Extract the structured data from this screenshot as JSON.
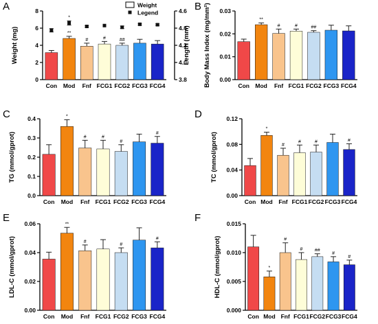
{
  "figure": {
    "categories": [
      "Con",
      "Mod",
      "Fnf",
      "FCG1",
      "FCG2",
      "FCG3",
      "FCG4"
    ],
    "colors": [
      "#F04848",
      "#F2850F",
      "#F9C48D",
      "#FEFDD8",
      "#C5DDF2",
      "#2E96F0",
      "#1A24C8"
    ]
  },
  "chart_data": [
    {
      "panel": "A",
      "type": "bar",
      "ylabel": "Weight (mg)",
      "ylim": [
        0,
        8
      ],
      "yticks": [
        "0",
        "2",
        "4",
        "6",
        "8"
      ],
      "categories": [
        "Con",
        "Mod",
        "Fnf",
        "FCG1",
        "FCG2",
        "FCG3",
        "FCG4"
      ],
      "values": [
        3.15,
        4.8,
        3.9,
        4.15,
        4.0,
        4.25,
        4.15
      ],
      "errors": [
        0.25,
        0.25,
        0.35,
        0.3,
        0.25,
        0.45,
        0.4
      ],
      "markers": [
        "",
        "**",
        "#",
        "#",
        "##",
        "",
        ""
      ],
      "legend": [
        "Weight",
        "Legend"
      ],
      "secondary": {
        "type": "scatter",
        "ylabel": "Length (mm)",
        "ylim": [
          3.8,
          4.6
        ],
        "yticks": [
          "3.8",
          "4.0",
          "4.2",
          "4.4",
          "4.6"
        ],
        "values": [
          4.375,
          4.46,
          4.42,
          4.43,
          4.41,
          4.445,
          4.44
        ],
        "errors": [
          0.02,
          0.025,
          0.01,
          0.0,
          0.015,
          0.01,
          0.01
        ],
        "markers": [
          "",
          "*",
          "",
          "",
          "",
          "",
          ""
        ]
      }
    },
    {
      "panel": "B",
      "type": "bar",
      "ylabel": "Body Mass Index (mg/mm²)",
      "ylim": [
        0,
        0.03
      ],
      "yticks": [
        "0.00",
        "0.01",
        "0.02",
        "0.03"
      ],
      "categories": [
        "Con",
        "Mod",
        "Fnf",
        "FCG1",
        "FCG2",
        "FCG3",
        "FCG4"
      ],
      "values": [
        0.0166,
        0.024,
        0.0202,
        0.0212,
        0.0207,
        0.0216,
        0.0213
      ],
      "errors": [
        0.0011,
        0.0008,
        0.0019,
        0.0009,
        0.0007,
        0.0022,
        0.0022
      ],
      "markers": [
        "",
        "**",
        "#",
        "#",
        "##",
        "",
        ""
      ]
    },
    {
      "panel": "C",
      "type": "bar",
      "ylabel": "TG (mmol/gprot)",
      "ylim": [
        0,
        0.4
      ],
      "yticks": [
        "0.0",
        "0.1",
        "0.2",
        "0.3",
        "0.4"
      ],
      "categories": [
        "Con",
        "Mod",
        "Fnf",
        "FCG1",
        "FCG2",
        "FCG3",
        "FCG4"
      ],
      "values": [
        0.215,
        0.36,
        0.248,
        0.243,
        0.23,
        0.28,
        0.273
      ],
      "errors": [
        0.05,
        0.035,
        0.04,
        0.045,
        0.035,
        0.04,
        0.035
      ],
      "markers": [
        "",
        "*",
        "#",
        "#",
        "#",
        "",
        "#"
      ]
    },
    {
      "panel": "D",
      "type": "bar",
      "ylabel": "TC (mmol/gprot)",
      "ylim": [
        0,
        0.12
      ],
      "yticks": [
        "0.00",
        "0.04",
        "0.08",
        "0.12"
      ],
      "categories": [
        "Con",
        "Mod",
        "Fnf",
        "FCG1",
        "FCG2",
        "FCG3",
        "FCG4"
      ],
      "values": [
        0.047,
        0.094,
        0.063,
        0.067,
        0.068,
        0.083,
        0.072
      ],
      "errors": [
        0.011,
        0.005,
        0.011,
        0.012,
        0.011,
        0.013,
        0.009
      ],
      "markers": [
        "",
        "*",
        "#",
        "#",
        "#",
        "",
        "#"
      ]
    },
    {
      "panel": "E",
      "type": "bar",
      "ylabel": "LDL-C (mmol/gprot)",
      "ylim": [
        0,
        0.06
      ],
      "yticks": [
        "0.00",
        "0.02",
        "0.04",
        "0.06"
      ],
      "categories": [
        "Con",
        "Mod",
        "Fnf",
        "FCG1",
        "FCG2",
        "FCG3",
        "FCG4"
      ],
      "values": [
        0.0355,
        0.0535,
        0.0413,
        0.0425,
        0.04,
        0.0487,
        0.0433
      ],
      "errors": [
        0.0048,
        0.004,
        0.004,
        0.0065,
        0.0033,
        0.0085,
        0.0042
      ],
      "markers": [
        "",
        "**",
        "#",
        "",
        "#",
        "",
        "#"
      ]
    },
    {
      "panel": "F",
      "type": "bar",
      "ylabel": "HDL-C (mmol/gprot)",
      "ylim": [
        0,
        0.015
      ],
      "yticks": [
        "0.000",
        "0.005",
        "0.010",
        "0.015"
      ],
      "categories": [
        "Con",
        "Mod",
        "Fnf",
        "FCG1",
        "FCG2",
        "FCG3",
        "FCG4"
      ],
      "values": [
        0.011,
        0.0058,
        0.01,
        0.0088,
        0.0093,
        0.0084,
        0.0079
      ],
      "errors": [
        0.002,
        0.001,
        0.0017,
        0.0012,
        0.0005,
        0.0009,
        0.0008
      ],
      "markers": [
        "",
        "*",
        "#",
        "#",
        "##",
        "#",
        "#"
      ]
    }
  ]
}
